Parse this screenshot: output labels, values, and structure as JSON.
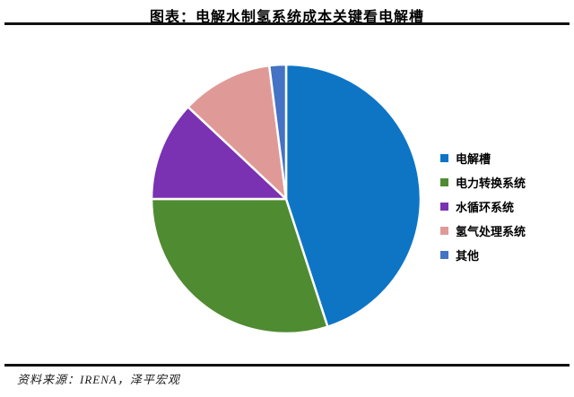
{
  "header": {
    "title": "图表：电解水制氢系统成本关键看电解槽"
  },
  "footer": {
    "source": "资料来源：IRENA，泽平宏观"
  },
  "chart_data": {
    "type": "pie",
    "title": "电解水制氢系统成本关键看电解槽",
    "categories": [
      "电解槽",
      "电力转换系统",
      "水循环系统",
      "氢气处理系统",
      "其他"
    ],
    "values": [
      45,
      30,
      12,
      11,
      2
    ],
    "unit": "%",
    "colors": [
      "#0e75c5",
      "#4f8b31",
      "#7a31b2",
      "#df9a98",
      "#4472c4"
    ],
    "start_angle_deg": 0,
    "direction": "clockwise",
    "legend_position": "right",
    "slice_border_color": "#ffffff",
    "slice_border_width": 2.5
  }
}
